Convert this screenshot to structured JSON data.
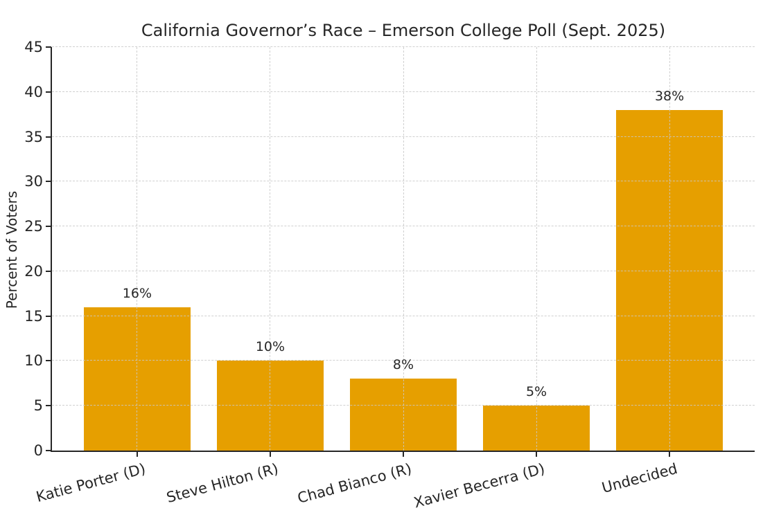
{
  "chart_data": {
    "type": "bar",
    "title": "California Governor’s Race – Emerson College Poll (Sept. 2025)",
    "xlabel": "",
    "ylabel": "Percent of Voters",
    "categories": [
      "Katie Porter (D)",
      "Steve Hilton (R)",
      "Chad Bianco (R)",
      "Xavier Becerra (D)",
      "Undecided"
    ],
    "values": [
      16,
      10,
      8,
      5,
      38
    ],
    "bar_labels": [
      "16%",
      "10%",
      "8%",
      "5%",
      "38%"
    ],
    "ylim": [
      0,
      45
    ],
    "yticks": [
      0,
      5,
      10,
      15,
      20,
      25,
      30,
      35,
      40,
      45
    ],
    "bar_color": "#E69F00",
    "text_color": "#262626",
    "grid": {
      "visible": true,
      "axis": "both",
      "style": "dashed",
      "color": "#c8c8c8"
    },
    "legend_position": "none",
    "x_tick_rotation_deg": 15
  }
}
